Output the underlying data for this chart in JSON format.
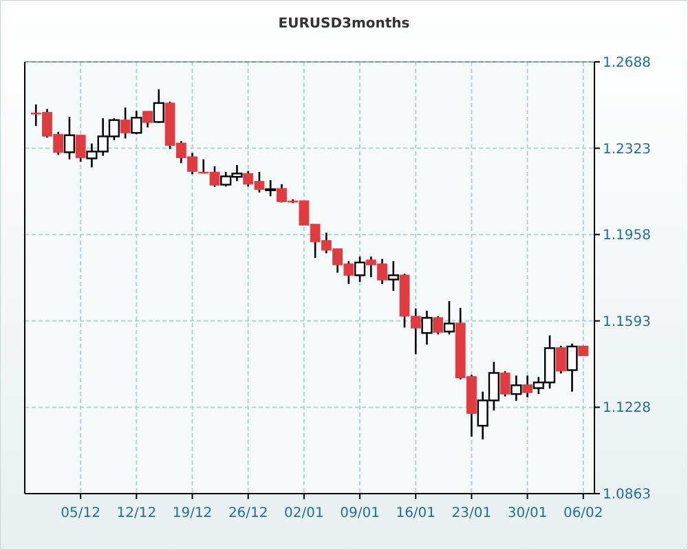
{
  "chart_data": {
    "type": "candlestick",
    "title": "EURUSD3months",
    "categories": [
      null,
      null,
      null,
      null,
      "05/12",
      null,
      null,
      null,
      null,
      "12/12",
      null,
      null,
      null,
      null,
      "19/12",
      null,
      null,
      null,
      null,
      "26/12",
      null,
      null,
      null,
      null,
      "02/01",
      null,
      null,
      null,
      null,
      "09/01",
      null,
      null,
      null,
      null,
      "16/01",
      null,
      null,
      null,
      null,
      "23/01",
      null,
      null,
      null,
      null,
      "30/01",
      null,
      null,
      null,
      null,
      "06/02"
    ],
    "ohlc": [
      [
        1.2472,
        1.2508,
        1.2417,
        1.2469
      ],
      [
        1.2475,
        1.2489,
        1.2368,
        1.2374
      ],
      [
        1.2382,
        1.2392,
        1.2295,
        1.2305
      ],
      [
        1.2306,
        1.2456,
        1.2276,
        1.2378
      ],
      [
        1.2378,
        1.2378,
        1.2266,
        1.2283
      ],
      [
        1.228,
        1.2343,
        1.2242,
        1.2309
      ],
      [
        1.2309,
        1.245,
        1.2291,
        1.2373
      ],
      [
        1.2373,
        1.245,
        1.2357,
        1.2442
      ],
      [
        1.2442,
        1.2495,
        1.2364,
        1.2388
      ],
      [
        1.2388,
        1.2481,
        1.2382,
        1.2452
      ],
      [
        1.2479,
        1.2479,
        1.2411,
        1.2432
      ],
      [
        1.2434,
        1.2572,
        1.243,
        1.2514
      ],
      [
        1.2514,
        1.252,
        1.232,
        1.2335
      ],
      [
        1.2345,
        1.2353,
        1.226,
        1.2283
      ],
      [
        1.2287,
        1.2303,
        1.2213,
        1.2225
      ],
      [
        1.2222,
        1.2276,
        1.2217,
        1.2221
      ],
      [
        1.2222,
        1.2246,
        1.2159,
        1.2167
      ],
      [
        1.2169,
        1.2223,
        1.2161,
        1.2204
      ],
      [
        1.2202,
        1.2252,
        1.2184,
        1.2216
      ],
      [
        1.2216,
        1.2227,
        1.2161,
        1.2171
      ],
      [
        1.2183,
        1.2223,
        1.2136,
        1.2149
      ],
      [
        1.2148,
        1.2188,
        1.212,
        1.215
      ],
      [
        1.2153,
        1.2171,
        1.2094,
        1.2097
      ],
      [
        1.21,
        1.2107,
        1.2091,
        1.2097
      ],
      [
        1.2101,
        1.2101,
        1.1998,
        1.1998
      ],
      [
        1.2002,
        1.2002,
        1.1859,
        1.1927
      ],
      [
        1.1933,
        1.1966,
        1.1879,
        1.1892
      ],
      [
        1.1898,
        1.1898,
        1.1797,
        1.183
      ],
      [
        1.1834,
        1.1846,
        1.1749,
        1.1786
      ],
      [
        1.1786,
        1.1865,
        1.1758,
        1.184
      ],
      [
        1.1851,
        1.1865,
        1.1778,
        1.183
      ],
      [
        1.1834,
        1.1855,
        1.1749,
        1.1766
      ],
      [
        1.1768,
        1.1846,
        1.172,
        1.1786
      ],
      [
        1.1787,
        1.1793,
        1.1565,
        1.1613
      ],
      [
        1.1613,
        1.1646,
        1.1452,
        1.1563
      ],
      [
        1.1542,
        1.1636,
        1.1493,
        1.1606
      ],
      [
        1.1607,
        1.1613,
        1.1536,
        1.1545
      ],
      [
        1.1548,
        1.1677,
        1.1536,
        1.1582
      ],
      [
        1.1584,
        1.1648,
        1.1346,
        1.1352
      ],
      [
        1.1358,
        1.1365,
        1.1104,
        1.1202
      ],
      [
        1.115,
        1.1294,
        1.1092,
        1.1257
      ],
      [
        1.1257,
        1.142,
        1.1214,
        1.1373
      ],
      [
        1.1373,
        1.1381,
        1.1274,
        1.1284
      ],
      [
        1.1284,
        1.1362,
        1.1255,
        1.1321
      ],
      [
        1.1323,
        1.1362,
        1.127,
        1.129
      ],
      [
        1.1309,
        1.1356,
        1.1284,
        1.1333
      ],
      [
        1.1333,
        1.1532,
        1.1307,
        1.1478
      ],
      [
        1.148,
        1.1488,
        1.1371,
        1.1381
      ],
      [
        1.1385,
        1.1497,
        1.1294,
        1.1485
      ],
      [
        1.1487,
        1.1487,
        1.1446,
        1.1446
      ]
    ],
    "ylim": [
      1.0863,
      1.2688
    ],
    "yticks": [
      1.0863,
      1.1228,
      1.1593,
      1.1958,
      1.2323,
      1.2688
    ],
    "grid": true
  }
}
